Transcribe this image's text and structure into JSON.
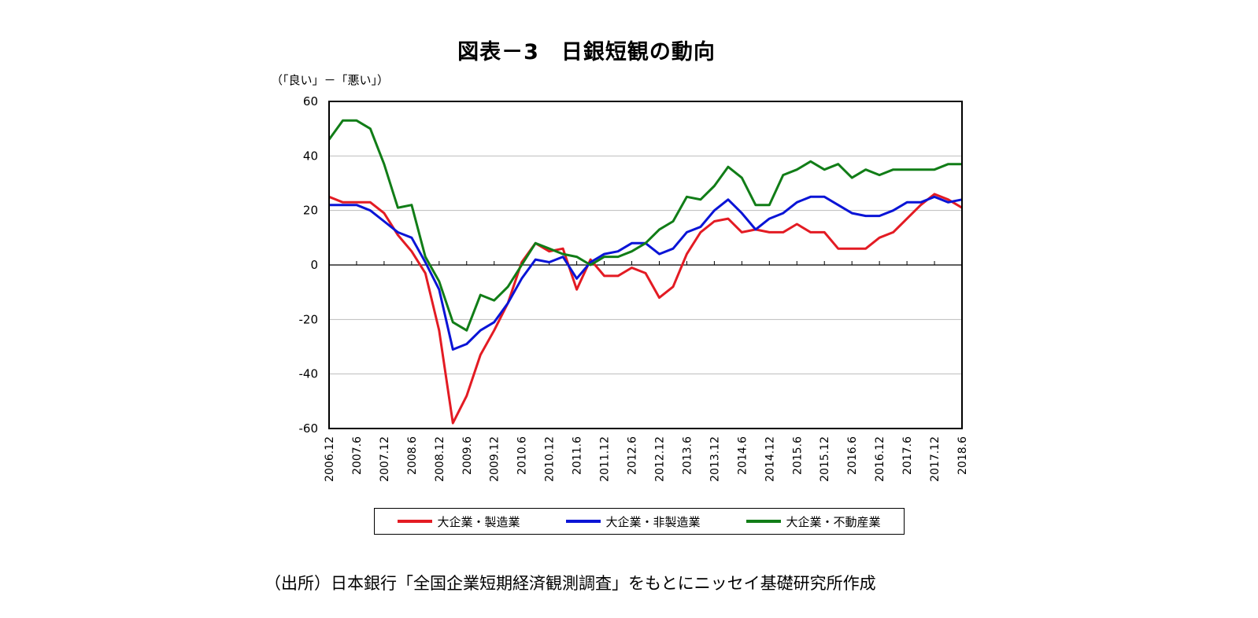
{
  "chart_data": {
    "type": "line",
    "title": "図表－3　日銀短観の動向",
    "ylabel": "（「良い」－「悪い」）",
    "xlabel": "",
    "ylim": [
      -60,
      60
    ],
    "yticks": [
      60,
      40,
      20,
      0,
      -20,
      -40,
      -60
    ],
    "ytick_labels": [
      "60",
      "40",
      "20",
      "0",
      "-20",
      "-40",
      "-60"
    ],
    "grid": true,
    "legend_position": "bottom",
    "x": [
      "2006.12",
      "2007.3",
      "2007.6",
      "2007.9",
      "2007.12",
      "2008.3",
      "2008.6",
      "2008.9",
      "2008.12",
      "2009.3",
      "2009.6",
      "2009.9",
      "2009.12",
      "2010.3",
      "2010.6",
      "2010.9",
      "2010.12",
      "2011.3",
      "2011.6",
      "2011.9",
      "2011.12",
      "2012.3",
      "2012.6",
      "2012.9",
      "2012.12",
      "2013.3",
      "2013.6",
      "2013.9",
      "2013.12",
      "2014.3",
      "2014.6",
      "2014.9",
      "2014.12",
      "2015.3",
      "2015.6",
      "2015.9",
      "2015.12",
      "2016.3",
      "2016.6",
      "2016.9",
      "2016.12",
      "2017.3",
      "2017.6",
      "2017.9",
      "2017.12",
      "2018.3",
      "2018.6"
    ],
    "xtick_labels": [
      "2006.12",
      "2007.6",
      "2007.12",
      "2008.6",
      "2008.12",
      "2009.6",
      "2009.12",
      "2010.6",
      "2010.12",
      "2011.6",
      "2011.12",
      "2012.6",
      "2012.12",
      "2013.6",
      "2013.12",
      "2014.6",
      "2014.12",
      "2015.6",
      "2015.12",
      "2016.6",
      "2016.12",
      "2017.6",
      "2017.12",
      "2018.6"
    ],
    "series": [
      {
        "name": "大企業・製造業",
        "color": "#e31b23",
        "values": [
          25,
          23,
          23,
          23,
          19,
          11,
          5,
          -3,
          -24,
          -58,
          -48,
          -33,
          -24,
          -14,
          1,
          8,
          5,
          6,
          -9,
          2,
          -4,
          -4,
          -1,
          -3,
          -12,
          -8,
          4,
          12,
          16,
          17,
          12,
          13,
          12,
          12,
          15,
          12,
          12,
          6,
          6,
          6,
          10,
          12,
          17,
          22,
          26,
          24,
          21
        ]
      },
      {
        "name": "大企業・非製造業",
        "color": "#0a14d6",
        "values": [
          22,
          22,
          22,
          20,
          16,
          12,
          10,
          1,
          -9,
          -31,
          -29,
          -24,
          -21,
          -14,
          -5,
          2,
          1,
          3,
          -5,
          1,
          4,
          5,
          8,
          8,
          4,
          6,
          12,
          14,
          20,
          24,
          19,
          13,
          17,
          19,
          23,
          25,
          25,
          22,
          19,
          18,
          18,
          20,
          23,
          23,
          25,
          23,
          24
        ]
      },
      {
        "name": "大企業・不動産業",
        "color": "#117d17",
        "values": [
          46,
          53,
          53,
          50,
          37,
          21,
          22,
          3,
          -6,
          -21,
          -24,
          -11,
          -13,
          -8,
          0,
          8,
          6,
          4,
          3,
          0,
          3,
          3,
          5,
          8,
          13,
          16,
          25,
          24,
          29,
          36,
          32,
          22,
          22,
          33,
          35,
          38,
          35,
          37,
          32,
          35,
          33,
          35,
          35,
          35,
          35,
          37,
          37
        ]
      }
    ]
  },
  "source": "（出所）日本銀行「全国企業短期経済観測調査」をもとにニッセイ基礎研究所作成"
}
